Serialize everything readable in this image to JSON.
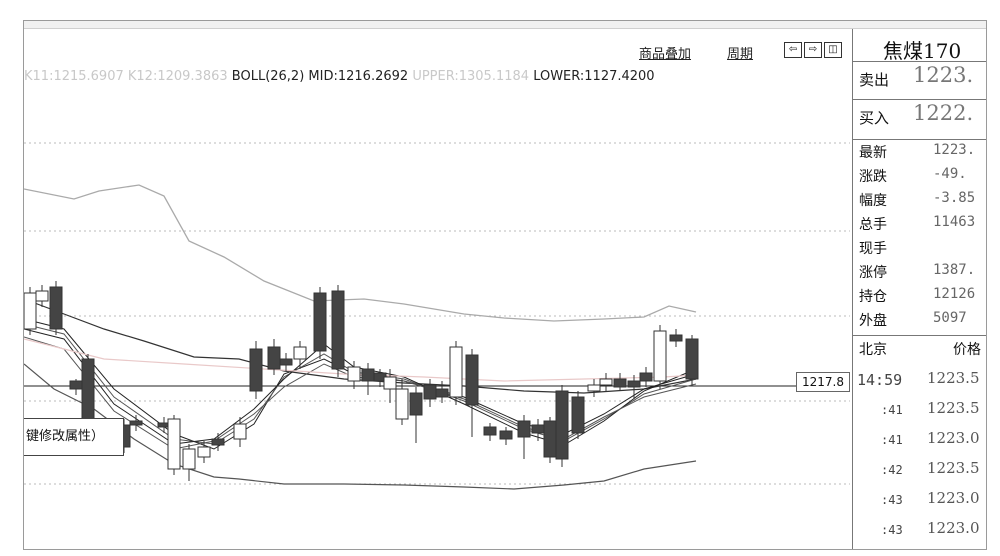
{
  "toolbar": {
    "overlay_label": "商品叠加",
    "period_label": "周期"
  },
  "indicator": {
    "faded_text": "K11:1215.6907 K12:1209.3863",
    "name": "BOLL(26,2)",
    "mid": "MID:1216.2692",
    "upper": "UPPER:1305.1184",
    "lower": "LOWER:1127.4200"
  },
  "chart": {
    "price_tag": "1217.8",
    "popup_text": "键修改属性）",
    "colors": {
      "up": "#ffffff",
      "down": "#444444",
      "band": "#555555",
      "upper_band": "#aaaaaa",
      "ma_light": "#e9c9c9"
    }
  },
  "quote": {
    "symbol": "焦煤170",
    "sell_label": "卖出",
    "sell_value": "1223.",
    "buy_label": "买入",
    "buy_value": "1222.",
    "stats": [
      {
        "label": "最新",
        "value": "1223."
      },
      {
        "label": "涨跌",
        "value": "-49."
      },
      {
        "label": "幅度",
        "value": "-3.85"
      },
      {
        "label": "总手",
        "value": "11463"
      },
      {
        "label": "现手",
        "value": ""
      },
      {
        "label": "涨停",
        "value": "1387."
      },
      {
        "label": "持仓",
        "value": "12126"
      },
      {
        "label": "外盘",
        "value": "5097"
      }
    ],
    "ticks_header_left": "北京",
    "ticks_header_right": "价格",
    "ticks": [
      {
        "time": "14:59",
        "price": "1223.5"
      },
      {
        "time": ":41",
        "price": "1223.5"
      },
      {
        "time": ":41",
        "price": "1223.0"
      },
      {
        "time": ":42",
        "price": "1223.5"
      },
      {
        "time": ":43",
        "price": "1223.0"
      },
      {
        "time": ":43",
        "price": "1223.0"
      }
    ]
  }
}
